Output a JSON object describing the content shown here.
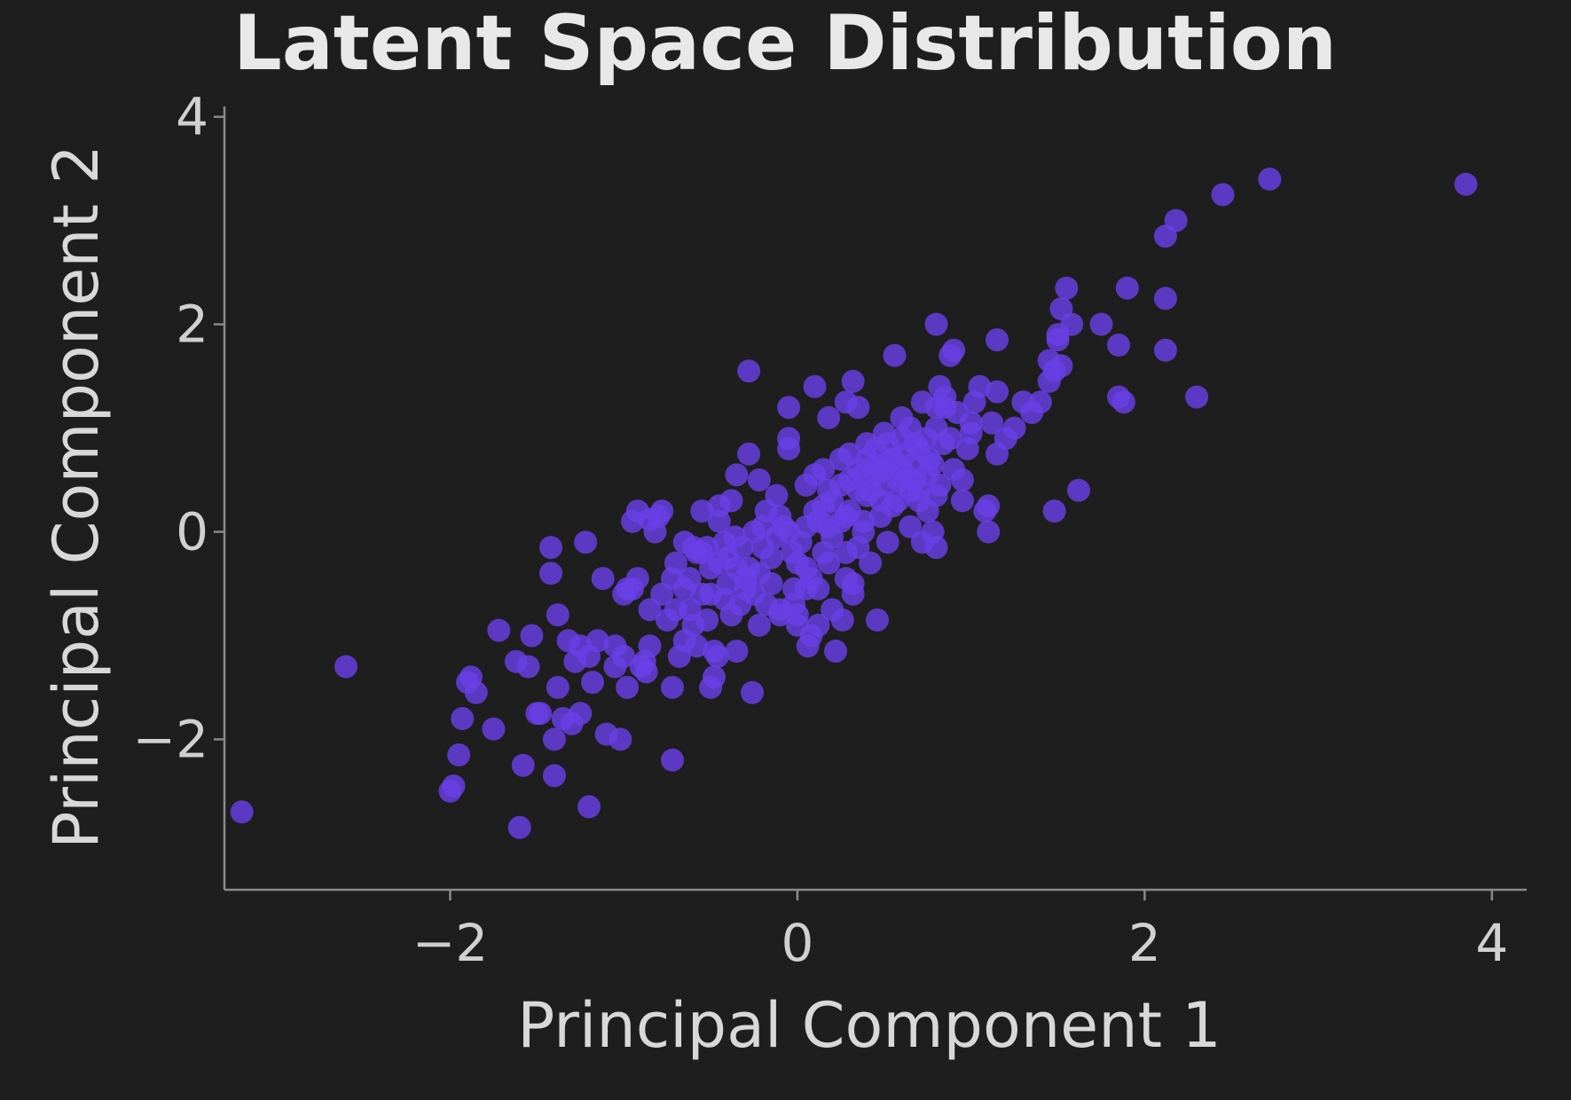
{
  "chart_data": {
    "type": "scatter",
    "title": "Latent Space Distribution",
    "xlabel": "Principal Component 1",
    "ylabel": "Principal Component 2",
    "xlim": [
      -3.3,
      4.2
    ],
    "ylim": [
      -3.45,
      4.1
    ],
    "xticks": [
      -2,
      0,
      2,
      4
    ],
    "yticks": [
      -2,
      0,
      2,
      4
    ],
    "xtick_labels": [
      "−2",
      "0",
      "2",
      "4"
    ],
    "ytick_labels": [
      "−2",
      "0",
      "2",
      "4"
    ],
    "grid": false,
    "color": "#6a3fe6",
    "background": "#1e1e1e",
    "series": [
      {
        "points": [
          [
            -3.2,
            -2.7
          ],
          [
            -2.6,
            -1.3
          ],
          [
            -2.0,
            -2.5
          ],
          [
            -1.98,
            -2.45
          ],
          [
            -1.95,
            -2.15
          ],
          [
            -1.93,
            -1.8
          ],
          [
            -1.9,
            -1.45
          ],
          [
            -1.88,
            -1.4
          ],
          [
            -1.85,
            -1.55
          ],
          [
            -1.75,
            -1.9
          ],
          [
            -1.72,
            -0.95
          ],
          [
            -1.62,
            -1.25
          ],
          [
            -1.6,
            -2.85
          ],
          [
            -1.58,
            -2.25
          ],
          [
            -1.55,
            -1.3
          ],
          [
            -1.53,
            -1.0
          ],
          [
            -1.5,
            -1.75
          ],
          [
            -1.48,
            -1.75
          ],
          [
            -1.42,
            -0.4
          ],
          [
            -1.42,
            -0.15
          ],
          [
            -1.4,
            -2.0
          ],
          [
            -1.4,
            -2.35
          ],
          [
            -1.38,
            -1.5
          ],
          [
            -1.38,
            -0.8
          ],
          [
            -1.35,
            -1.8
          ],
          [
            -1.32,
            -1.05
          ],
          [
            -1.3,
            -1.85
          ],
          [
            -1.28,
            -1.25
          ],
          [
            -1.25,
            -1.1
          ],
          [
            -1.25,
            -1.75
          ],
          [
            -1.22,
            -0.1
          ],
          [
            -1.2,
            -1.2
          ],
          [
            -1.2,
            -2.65
          ],
          [
            -1.18,
            -1.45
          ],
          [
            -1.15,
            -1.05
          ],
          [
            -1.12,
            -0.45
          ],
          [
            -1.1,
            -1.95
          ],
          [
            -1.05,
            -1.1
          ],
          [
            -1.05,
            -1.3
          ],
          [
            -1.02,
            -2.0
          ],
          [
            -1.0,
            -1.2
          ],
          [
            -0.98,
            -1.5
          ],
          [
            -0.95,
            -0.55
          ],
          [
            -0.92,
            -0.45
          ],
          [
            -0.92,
            0.2
          ],
          [
            -0.9,
            -1.3
          ],
          [
            -0.88,
            -1.25
          ],
          [
            -0.87,
            -1.35
          ],
          [
            -0.85,
            -1.1
          ],
          [
            -0.85,
            -0.75
          ],
          [
            -0.82,
            0.0
          ],
          [
            -0.8,
            0.15
          ],
          [
            -0.78,
            -0.6
          ],
          [
            -0.75,
            -0.85
          ],
          [
            -0.72,
            -1.5
          ],
          [
            -0.72,
            -2.2
          ],
          [
            -0.7,
            -0.75
          ],
          [
            -0.7,
            -0.3
          ],
          [
            -0.68,
            -1.2
          ],
          [
            -0.65,
            -1.05
          ],
          [
            -0.62,
            -0.45
          ],
          [
            -0.6,
            -0.9
          ],
          [
            -0.58,
            -1.1
          ],
          [
            -0.55,
            -0.6
          ],
          [
            -0.55,
            0.2
          ],
          [
            -0.52,
            -0.15
          ],
          [
            -0.5,
            -1.5
          ],
          [
            -0.48,
            -1.4
          ],
          [
            -0.48,
            -1.15
          ],
          [
            -0.46,
            -1.2
          ],
          [
            -0.45,
            -0.3
          ],
          [
            -0.42,
            -0.1
          ],
          [
            -0.4,
            -0.25
          ],
          [
            -0.38,
            -0.8
          ],
          [
            -0.36,
            -0.05
          ],
          [
            -0.35,
            -1.15
          ],
          [
            -0.33,
            -0.7
          ],
          [
            -0.3,
            -0.55
          ],
          [
            -0.28,
            -0.35
          ],
          [
            -0.26,
            -1.55
          ],
          [
            -0.25,
            0.0
          ],
          [
            -0.22,
            -0.9
          ],
          [
            -0.2,
            -0.15
          ],
          [
            -0.18,
            0.2
          ],
          [
            -0.15,
            -0.5
          ],
          [
            -0.12,
            0.35
          ],
          [
            -0.1,
            -0.75
          ],
          [
            -0.08,
            0.05
          ],
          [
            -0.05,
            0.8
          ],
          [
            -0.03,
            -0.2
          ],
          [
            -0.02,
            -0.55
          ],
          [
            0.0,
            -0.8
          ],
          [
            0.02,
            -0.1
          ],
          [
            0.05,
            0.45
          ],
          [
            0.08,
            -1.0
          ],
          [
            0.1,
            0.2
          ],
          [
            0.12,
            -0.9
          ],
          [
            0.15,
            0.6
          ],
          [
            0.18,
            -0.3
          ],
          [
            0.2,
            0.3
          ],
          [
            0.22,
            -1.15
          ],
          [
            0.25,
            0.1
          ],
          [
            0.28,
            -0.45
          ],
          [
            0.3,
            0.75
          ],
          [
            0.32,
            -0.6
          ],
          [
            0.35,
            0.4
          ],
          [
            0.38,
            0.0
          ],
          [
            0.4,
            0.85
          ],
          [
            0.42,
            -0.3
          ],
          [
            0.45,
            0.55
          ],
          [
            0.48,
            0.15
          ],
          [
            0.5,
            0.95
          ],
          [
            0.52,
            -0.1
          ],
          [
            0.55,
            0.7
          ],
          [
            0.58,
            0.3
          ],
          [
            0.6,
            1.1
          ],
          [
            0.62,
            0.5
          ],
          [
            0.65,
            0.05
          ],
          [
            0.68,
            0.85
          ],
          [
            0.7,
            0.4
          ],
          [
            0.72,
            1.25
          ],
          [
            0.75,
            0.2
          ],
          [
            0.78,
            0.65
          ],
          [
            0.8,
            1.0
          ],
          [
            0.82,
            0.45
          ],
          [
            0.85,
            1.3
          ],
          [
            0.88,
            0.9
          ],
          [
            0.9,
            0.6
          ],
          [
            0.92,
            1.15
          ],
          [
            0.95,
            0.3
          ],
          [
            0.98,
            0.8
          ],
          [
            1.0,
            1.05
          ],
          [
            -0.55,
            -0.2
          ],
          [
            -0.45,
            0.1
          ],
          [
            -0.3,
            -0.45
          ],
          [
            -0.2,
            0.05
          ],
          [
            -0.1,
            0.15
          ],
          [
            0.0,
            -0.3
          ],
          [
            0.05,
            0.05
          ],
          [
            0.1,
            0.55
          ],
          [
            0.15,
            0.25
          ],
          [
            0.2,
            -0.05
          ],
          [
            0.25,
            0.45
          ],
          [
            0.3,
            0.2
          ],
          [
            0.35,
            0.6
          ],
          [
            0.4,
            0.35
          ],
          [
            0.45,
            0.8
          ],
          [
            0.5,
            0.45
          ],
          [
            0.55,
            0.25
          ],
          [
            0.6,
            0.6
          ],
          [
            0.65,
            0.4
          ],
          [
            0.7,
            0.8
          ],
          [
            0.75,
            0.55
          ],
          [
            0.8,
            0.35
          ],
          [
            -0.65,
            -0.55
          ],
          [
            -0.6,
            -0.15
          ],
          [
            -0.5,
            -0.6
          ],
          [
            -0.4,
            -0.5
          ],
          [
            -0.35,
            -0.35
          ],
          [
            -0.25,
            -0.6
          ],
          [
            -0.15,
            -0.25
          ],
          [
            -0.05,
            0.0
          ],
          [
            0.05,
            -0.35
          ],
          [
            0.12,
            0.1
          ],
          [
            0.18,
            0.4
          ],
          [
            0.28,
            0.15
          ],
          [
            0.38,
            0.55
          ],
          [
            0.48,
            0.6
          ],
          [
            -0.72,
            -0.45
          ],
          [
            -0.62,
            -0.75
          ],
          [
            -0.52,
            -0.85
          ],
          [
            -0.42,
            -0.65
          ],
          [
            -0.32,
            -0.15
          ],
          [
            -0.22,
            -0.4
          ],
          [
            -0.12,
            -0.05
          ],
          [
            -0.02,
            -0.7
          ],
          [
            0.08,
            -0.45
          ],
          [
            0.18,
            0.05
          ],
          [
            0.28,
            -0.2
          ],
          [
            0.38,
            0.1
          ],
          [
            -0.28,
            0.75
          ],
          [
            -0.22,
            0.5
          ],
          [
            -0.35,
            0.55
          ],
          [
            -0.38,
            0.3
          ],
          [
            -0.45,
            0.25
          ],
          [
            -0.28,
            1.55
          ],
          [
            -0.05,
            1.2
          ],
          [
            -0.05,
            0.9
          ],
          [
            0.1,
            1.4
          ],
          [
            0.18,
            1.1
          ],
          [
            0.28,
            1.25
          ],
          [
            0.32,
            1.45
          ],
          [
            0.35,
            1.2
          ],
          [
            0.4,
            0.7
          ],
          [
            0.45,
            0.65
          ],
          [
            0.55,
            0.7
          ],
          [
            0.6,
            0.9
          ],
          [
            0.65,
            1.0
          ],
          [
            0.68,
            0.5
          ],
          [
            0.72,
            -0.1
          ],
          [
            0.78,
            0.0
          ],
          [
            0.8,
            -0.15
          ],
          [
            0.82,
            1.4
          ],
          [
            0.85,
            1.2
          ],
          [
            0.8,
            1.2
          ],
          [
            0.9,
            1.75
          ],
          [
            0.88,
            1.7
          ],
          [
            0.8,
            2.0
          ],
          [
            0.56,
            1.7
          ],
          [
            0.5,
            0.6
          ],
          [
            0.95,
            0.5
          ],
          [
            1.0,
            0.95
          ],
          [
            1.02,
            1.25
          ],
          [
            1.05,
            1.4
          ],
          [
            1.08,
            0.2
          ],
          [
            1.1,
            0.0
          ],
          [
            1.1,
            0.25
          ],
          [
            1.12,
            1.05
          ],
          [
            1.15,
            1.35
          ],
          [
            1.15,
            1.85
          ],
          [
            1.15,
            0.75
          ],
          [
            1.2,
            0.9
          ],
          [
            1.25,
            1.0
          ],
          [
            1.3,
            1.25
          ],
          [
            1.35,
            1.15
          ],
          [
            1.4,
            1.25
          ],
          [
            1.45,
            1.45
          ],
          [
            1.45,
            1.65
          ],
          [
            1.48,
            1.55
          ],
          [
            1.5,
            1.9
          ],
          [
            1.5,
            1.85
          ],
          [
            1.52,
            1.6
          ],
          [
            1.52,
            2.15
          ],
          [
            1.55,
            2.35
          ],
          [
            1.58,
            2.0
          ],
          [
            1.62,
            0.4
          ],
          [
            1.48,
            0.2
          ],
          [
            1.75,
            2.0
          ],
          [
            1.85,
            1.3
          ],
          [
            1.85,
            1.8
          ],
          [
            1.88,
            1.25
          ],
          [
            1.9,
            2.35
          ],
          [
            2.12,
            1.75
          ],
          [
            2.12,
            2.25
          ],
          [
            2.12,
            2.85
          ],
          [
            2.18,
            3.0
          ],
          [
            2.3,
            1.3
          ],
          [
            2.45,
            3.25
          ],
          [
            2.72,
            3.4
          ],
          [
            3.85,
            3.35
          ],
          [
            -0.95,
            0.1
          ],
          [
            -0.85,
            0.12
          ],
          [
            -0.78,
            0.2
          ],
          [
            -0.65,
            -0.1
          ],
          [
            -0.58,
            -0.2
          ],
          [
            -0.5,
            -0.35
          ],
          [
            -1.0,
            -0.6
          ],
          [
            -0.98,
            -0.55
          ],
          [
            0.25,
            0.7
          ],
          [
            0.3,
            0.5
          ],
          [
            0.42,
            0.4
          ],
          [
            0.48,
            0.3
          ],
          [
            0.52,
            0.85
          ],
          [
            0.58,
            0.5
          ],
          [
            0.62,
            0.75
          ],
          [
            0.66,
            0.65
          ],
          [
            0.7,
            0.3
          ],
          [
            0.74,
            0.9
          ],
          [
            0.76,
            0.7
          ],
          [
            0.84,
            0.85
          ],
          [
            -0.1,
            -0.8
          ],
          [
            0.0,
            -0.9
          ],
          [
            0.06,
            -1.1
          ],
          [
            0.12,
            -0.55
          ],
          [
            0.2,
            -0.75
          ],
          [
            0.26,
            -0.85
          ],
          [
            0.32,
            -0.5
          ],
          [
            0.46,
            -0.85
          ],
          [
            0.35,
            -0.15
          ],
          [
            0.15,
            -0.2
          ],
          [
            0.05,
            -0.55
          ],
          [
            -0.18,
            -0.7
          ]
        ]
      }
    ]
  }
}
